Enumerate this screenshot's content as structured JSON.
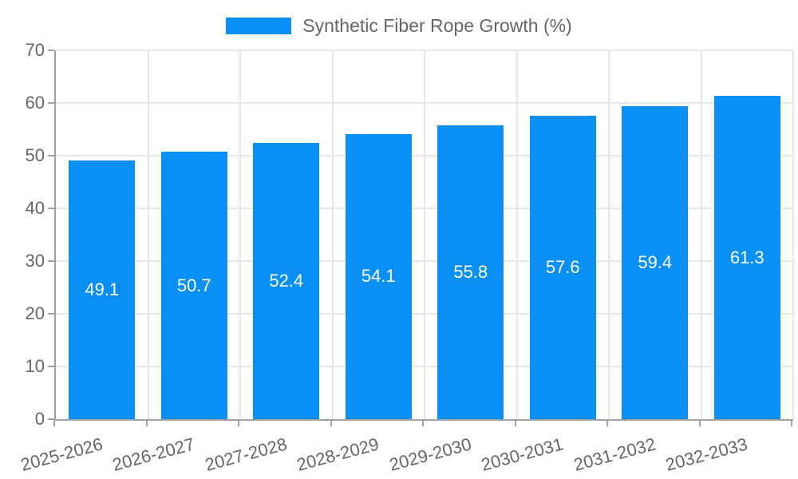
{
  "chart_data": {
    "type": "bar",
    "title": "Synthetic Fiber Rope Growth (%)",
    "categories": [
      "2025-2026",
      "2026-2027",
      "2027-2028",
      "2028-2029",
      "2029-2030",
      "2030-2031",
      "2031-2032",
      "2032-2033"
    ],
    "values": [
      49.1,
      50.7,
      52.4,
      54.1,
      55.8,
      57.6,
      59.4,
      61.3
    ],
    "value_labels": [
      "49.1",
      "50.7",
      "52.4",
      "54.1",
      "55.8",
      "57.6",
      "59.4",
      "61.3"
    ],
    "xlabel": "",
    "ylabel": "",
    "ylim": [
      0,
      70
    ],
    "yticks": [
      0,
      10,
      20,
      30,
      40,
      50,
      60,
      70
    ],
    "grid": true,
    "legend_position": "top",
    "bar_labels_position": "center",
    "colors": {
      "bar": "#0a90f5",
      "grid": "#e7e7e7",
      "axis": "#a0a0a0",
      "text": "#666666",
      "bar_label_text": "#ffffff",
      "background": "#ffffff"
    }
  }
}
